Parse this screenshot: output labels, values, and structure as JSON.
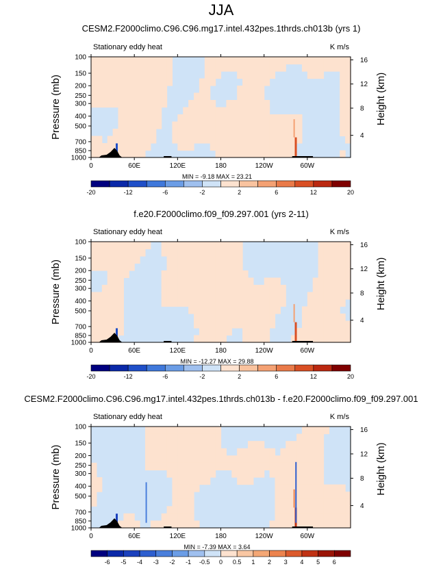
{
  "figure": {
    "title": "JJA",
    "min_max_prefix_min": "MIN = ",
    "min_max_prefix_max": "MAX = "
  },
  "colors": {
    "light_blue": "#cfe3f7",
    "light_peach": "#fde2cf",
    "topography": "#000000"
  },
  "chart_data": [
    {
      "type": "heatmap",
      "title": "CESM2.F2000climo.C96.C96.mg17.intel.432pes.1thrds.ch013b (yrs 1)",
      "variable_label": "Stationary eddy heat",
      "units": "K m/s",
      "ylabel": "Pressure (mb)",
      "ylabel_right": "Height (km)",
      "y_ticks": [
        "100",
        "150",
        "200",
        "250",
        "300",
        "400",
        "500",
        "700",
        "850",
        "1000"
      ],
      "y_ticks_right": [
        "16",
        "12",
        "8",
        "4"
      ],
      "x_ticks": [
        "0",
        "60E",
        "120E",
        "180",
        "120W",
        "60W"
      ],
      "min": "-9.18",
      "max": "23.21",
      "colorbar_labels": [
        "-20",
        "-12",
        "-6",
        "-2",
        "2",
        "6",
        "12",
        "20"
      ],
      "colorbar_colors": [
        "#00007f",
        "#0a28a8",
        "#1f4fc8",
        "#3f78db",
        "#6b9de6",
        "#9fc0ef",
        "#cfe3f7",
        "#fde2cf",
        "#f9c39f",
        "#f4a173",
        "#ea7a49",
        "#d94f24",
        "#bb2810",
        "#7f0000"
      ]
    },
    {
      "type": "heatmap",
      "title": "f.e20.F2000climo.f09_f09.297.001 (yrs 2-11)",
      "variable_label": "Stationary eddy heat",
      "units": "K m/s",
      "ylabel": "Pressure (mb)",
      "ylabel_right": "Height (km)",
      "y_ticks": [
        "100",
        "150",
        "200",
        "250",
        "300",
        "400",
        "500",
        "700",
        "850",
        "1000"
      ],
      "y_ticks_right": [
        "16",
        "12",
        "8",
        "4"
      ],
      "x_ticks": [
        "0",
        "60E",
        "120E",
        "180",
        "120W",
        "60W"
      ],
      "min": "-12.27",
      "max": "29.88",
      "colorbar_labels": [
        "-20",
        "-12",
        "-6",
        "-2",
        "2",
        "6",
        "12",
        "20"
      ],
      "colorbar_colors": [
        "#00007f",
        "#0a28a8",
        "#1f4fc8",
        "#3f78db",
        "#6b9de6",
        "#9fc0ef",
        "#cfe3f7",
        "#fde2cf",
        "#f9c39f",
        "#f4a173",
        "#ea7a49",
        "#d94f24",
        "#bb2810",
        "#7f0000"
      ]
    },
    {
      "type": "heatmap",
      "title": "CESM2.F2000climo.C96.C96.mg17.intel.432pes.1thrds.ch013b - f.e20.F2000climo.f09_f09.297.001",
      "variable_label": "Stationary eddy heat",
      "units": "K m/s",
      "ylabel": "Pressure (mb)",
      "ylabel_right": "Height (km)",
      "y_ticks": [
        "100",
        "150",
        "200",
        "250",
        "300",
        "400",
        "500",
        "700",
        "850",
        "1000"
      ],
      "y_ticks_right": [
        "16",
        "12",
        "8",
        "4"
      ],
      "x_ticks": [
        "0",
        "60E",
        "120E",
        "180",
        "120W",
        "60W"
      ],
      "min": "-7.39",
      "max": "3.64",
      "colorbar_labels": [
        "-6",
        "-5",
        "-4",
        "-3",
        "-2",
        "-1",
        "-0.5",
        "0",
        "0.5",
        "1",
        "2",
        "3",
        "4",
        "5",
        "6"
      ],
      "colorbar_colors": [
        "#00007f",
        "#0a28a8",
        "#1a40bd",
        "#2e5fcf",
        "#4a7fdc",
        "#6b9de6",
        "#9fc0ef",
        "#cfe3f7",
        "#fde2cf",
        "#f9c7a3",
        "#f4a775",
        "#ec834e",
        "#dc5a2c",
        "#c03214",
        "#9a1406",
        "#7f0000"
      ]
    }
  ]
}
